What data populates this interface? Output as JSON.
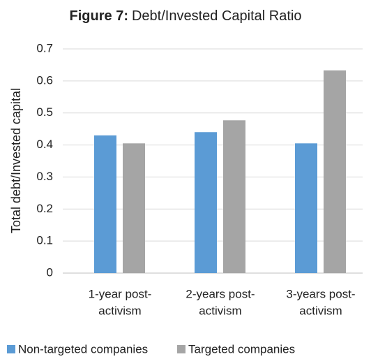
{
  "chart_data": {
    "type": "bar",
    "title_prefix": "Figure 7:",
    "title": "Debt/Invested Capital Ratio",
    "y_label": "Total debt/Invested capital",
    "categories": [
      [
        "1-year post-",
        "activism"
      ],
      [
        "2-years post-",
        "activism"
      ],
      [
        "3-years post-",
        "activism"
      ]
    ],
    "series": [
      {
        "name": "Non-targeted companies",
        "color": "#5b9bd5",
        "values": [
          0.43,
          0.44,
          0.405
        ]
      },
      {
        "name": "Targeted companies",
        "color": "#a5a5a5",
        "values": [
          0.405,
          0.477,
          0.633
        ]
      }
    ],
    "ylim": [
      0,
      0.7
    ],
    "yticks": [
      0,
      0.1,
      0.2,
      0.3,
      0.4,
      0.5,
      0.6,
      0.7
    ],
    "grid": true,
    "legend": "bottom"
  }
}
